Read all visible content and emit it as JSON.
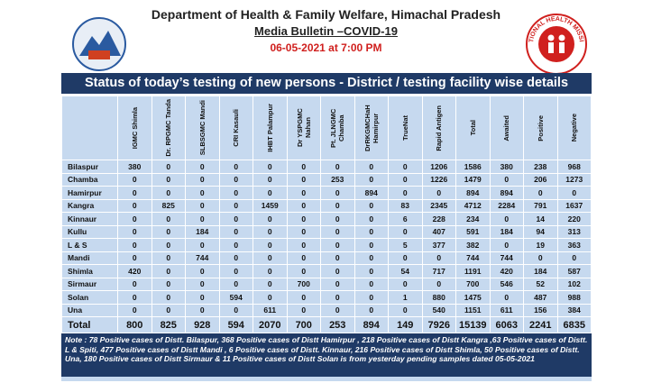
{
  "header": {
    "title": "Department of Health & Family Welfare, Himachal Pradesh",
    "subtitle": "Media Bulletin –COVID-19",
    "date": "06-05-2021 at 7:00 PM",
    "right_logo_text": "NATIONAL HEALTH MISSION"
  },
  "banner": "Status of today’s testing of new persons - District / testing facility wise details",
  "table": {
    "columns": [
      "IGMC Shimla",
      "Dr. RPGMC Tanda",
      "SLBSGMC Mandi",
      "CRI Kasauli",
      "IHBT Palampur",
      "Dr YSPGMC Nahan",
      "Pt. JLNGMC Chamba",
      "DrRKGMCHaH Hamirpur",
      "TrueNat",
      "Rapid Antigen",
      "Total",
      "Awaited",
      "Positive",
      "Negative"
    ],
    "rows": [
      [
        "Bilaspur",
        380,
        0,
        0,
        0,
        0,
        0,
        0,
        0,
        0,
        1206,
        1586,
        380,
        238,
        968
      ],
      [
        "Chamba",
        0,
        0,
        0,
        0,
        0,
        0,
        253,
        0,
        0,
        1226,
        1479,
        0,
        206,
        1273
      ],
      [
        "Hamirpur",
        0,
        0,
        0,
        0,
        0,
        0,
        0,
        894,
        0,
        0,
        894,
        894,
        0,
        0
      ],
      [
        "Kangra",
        0,
        825,
        0,
        0,
        1459,
        0,
        0,
        0,
        83,
        2345,
        4712,
        2284,
        791,
        1637
      ],
      [
        "Kinnaur",
        0,
        0,
        0,
        0,
        0,
        0,
        0,
        0,
        6,
        228,
        234,
        0,
        14,
        220
      ],
      [
        "Kullu",
        0,
        0,
        184,
        0,
        0,
        0,
        0,
        0,
        0,
        407,
        591,
        184,
        94,
        313
      ],
      [
        "L & S",
        0,
        0,
        0,
        0,
        0,
        0,
        0,
        0,
        5,
        377,
        382,
        0,
        19,
        363
      ],
      [
        "Mandi",
        0,
        0,
        744,
        0,
        0,
        0,
        0,
        0,
        0,
        0,
        744,
        744,
        0,
        0
      ],
      [
        "Shimla",
        420,
        0,
        0,
        0,
        0,
        0,
        0,
        0,
        54,
        717,
        1191,
        420,
        184,
        587
      ],
      [
        "Sirmaur",
        0,
        0,
        0,
        0,
        0,
        700,
        0,
        0,
        0,
        0,
        700,
        546,
        52,
        102
      ],
      [
        "Solan",
        0,
        0,
        0,
        594,
        0,
        0,
        0,
        0,
        1,
        880,
        1475,
        0,
        487,
        988
      ],
      [
        "Una",
        0,
        0,
        0,
        0,
        611,
        0,
        0,
        0,
        0,
        540,
        1151,
        611,
        156,
        384
      ]
    ],
    "total": [
      "Total",
      800,
      825,
      928,
      594,
      2070,
      700,
      253,
      894,
      149,
      7926,
      15139,
      6063,
      2241,
      6835
    ]
  },
  "note": "Note : 78 Positive cases of Distt. Bilaspur, 368 Positive cases of Distt Hamirpur , 218 Positive cases of Distt Kangra ,63 Positive cases of Distt. L & Spiti, 477 Positive cases of Distt Mandi , 6 Positive cases of Distt. Kinnaur, 216 Positive cases of Distt Shimla, 50 Positive cases of Distt. Una, 180 Positive cases of Distt Sirmaur & 11 Positive cases of Distt Solan is from yesterday pending samples dated 05-05-2021"
}
